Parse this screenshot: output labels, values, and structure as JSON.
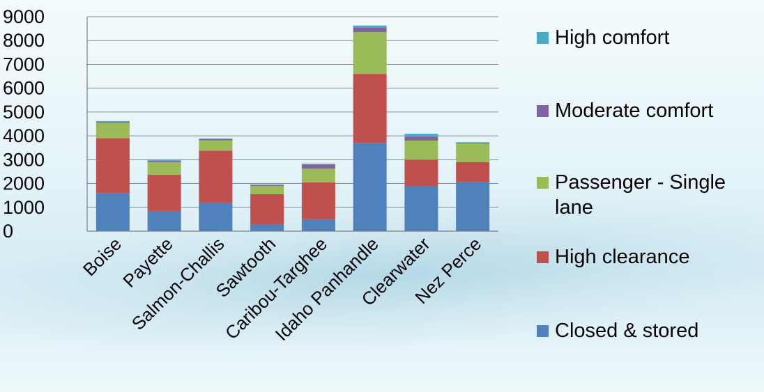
{
  "chart_data": {
    "type": "bar",
    "stacked": true,
    "title": "",
    "xlabel": "",
    "ylabel": "",
    "ylim": [
      0,
      9000
    ],
    "yticks": [
      0,
      1000,
      2000,
      3000,
      4000,
      5000,
      6000,
      7000,
      8000,
      9000
    ],
    "grid": "horizontal",
    "legend_position": "right",
    "categories": [
      "Boise",
      "Payette",
      "Salmon-Challis",
      "Sawtooth",
      "Caribou-Targhee",
      "Idaho Panhandle",
      "Clearwater",
      "Nez Perce"
    ],
    "series": [
      {
        "name": "Closed & stored",
        "color": "#4f81bd",
        "values": [
          1600,
          850,
          1200,
          280,
          500,
          3700,
          1900,
          2050
        ]
      },
      {
        "name": "High clearance",
        "color": "#c0504d",
        "values": [
          2300,
          1520,
          2180,
          1270,
          1550,
          2900,
          1100,
          850
        ]
      },
      {
        "name": "Passenger - Single lane",
        "color": "#9bbb59",
        "values": [
          650,
          530,
          430,
          350,
          570,
          1750,
          800,
          780
        ]
      },
      {
        "name": "Moderate comfort",
        "color": "#8064a2",
        "values": [
          50,
          60,
          60,
          40,
          180,
          200,
          170,
          30
        ]
      },
      {
        "name": "High comfort",
        "color": "#4bacc6",
        "values": [
          20,
          30,
          20,
          20,
          30,
          80,
          120,
          20
        ]
      }
    ]
  }
}
